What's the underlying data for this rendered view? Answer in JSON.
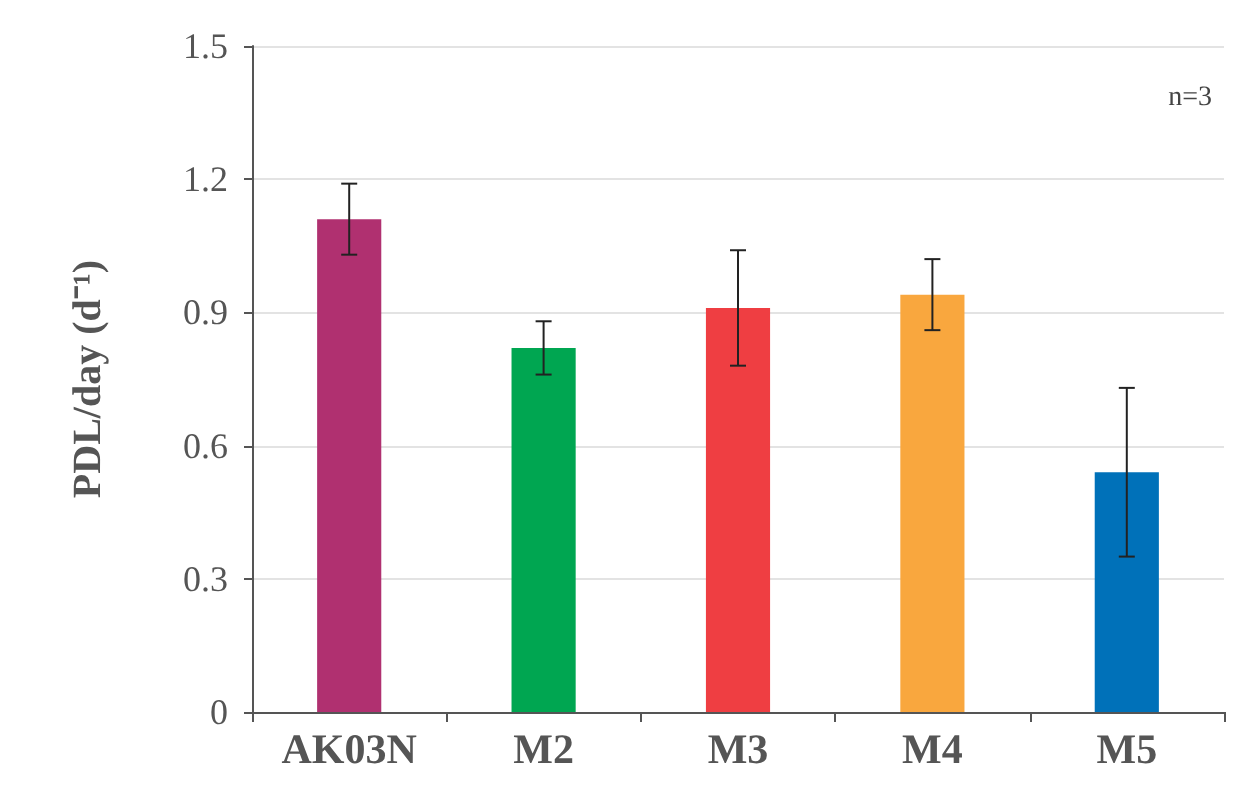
{
  "chart_data": {
    "type": "bar",
    "ylabel": "PDL/day (d⁻¹)",
    "categories": [
      "AK03N",
      "M2",
      "M3",
      "M4",
      "M5"
    ],
    "values": [
      1.11,
      0.82,
      0.91,
      0.94,
      0.54
    ],
    "colors": [
      "#b03070",
      "#00a651",
      "#ef3e42",
      "#f9a73e",
      "#0071b9"
    ],
    "errors": [
      0.08,
      0.06,
      0.13,
      0.08,
      0.19
    ],
    "ylim": [
      0,
      1.5
    ],
    "yticks": [
      {
        "value": 0,
        "label": "0"
      },
      0.3,
      0.6,
      0.9,
      1.2,
      1.5
    ],
    "grid": "y",
    "annotations": [
      "n=3"
    ]
  }
}
